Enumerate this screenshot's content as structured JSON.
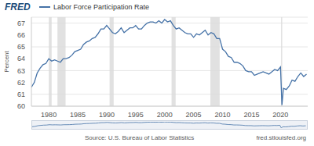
{
  "chart_data": {
    "type": "line",
    "ylabel": "Percent",
    "annotations": {
      "logo": "FRED",
      "source": "Source: U.S. Bureau of Labor Statistics",
      "url": "fred.stlouisfed.org"
    },
    "legend": "top left",
    "grid": true,
    "x": [
      1977.0,
      1977.5,
      1978.0,
      1978.5,
      1979.0,
      1979.5,
      1980.0,
      1980.5,
      1981.0,
      1981.5,
      1982.0,
      1982.5,
      1983.0,
      1983.5,
      1984.0,
      1984.5,
      1985.0,
      1985.5,
      1986.0,
      1986.5,
      1987.0,
      1987.5,
      1988.0,
      1988.5,
      1989.0,
      1989.5,
      1990.0,
      1990.5,
      1991.0,
      1991.5,
      1992.0,
      1992.5,
      1993.0,
      1993.5,
      1994.0,
      1994.5,
      1995.0,
      1995.5,
      1996.0,
      1996.5,
      1997.0,
      1997.5,
      1998.0,
      1998.5,
      1999.0,
      1999.5,
      2000.0,
      2000.5,
      2001.0,
      2001.5,
      2002.0,
      2002.5,
      2003.0,
      2003.5,
      2004.0,
      2004.5,
      2005.0,
      2005.5,
      2006.0,
      2006.5,
      2007.0,
      2007.5,
      2008.0,
      2008.5,
      2009.0,
      2009.5,
      2010.0,
      2010.5,
      2011.0,
      2011.5,
      2012.0,
      2012.5,
      2013.0,
      2013.5,
      2014.0,
      2014.5,
      2015.0,
      2015.5,
      2016.0,
      2016.5,
      2017.0,
      2017.5,
      2018.0,
      2018.5,
      2019.0,
      2019.5,
      2020.0,
      2020.25,
      2020.5,
      2021.0,
      2021.5,
      2022.0,
      2022.5,
      2023.0,
      2023.5,
      2024.0,
      2024.5
    ],
    "series": [
      {
        "name": "Labor Force Participation Rate",
        "color": "#4572a7",
        "values": [
          61.6,
          62.0,
          62.8,
          63.2,
          63.5,
          63.6,
          64.0,
          63.8,
          63.9,
          63.8,
          63.7,
          64.0,
          64.0,
          64.1,
          64.3,
          64.6,
          64.7,
          64.8,
          65.2,
          65.4,
          65.5,
          65.7,
          65.8,
          66.1,
          66.5,
          66.5,
          66.8,
          66.5,
          66.2,
          66.1,
          66.3,
          66.6,
          66.2,
          66.4,
          66.6,
          66.6,
          66.8,
          66.5,
          66.5,
          66.8,
          67.0,
          67.1,
          67.1,
          67.0,
          67.2,
          67.0,
          67.3,
          67.1,
          67.2,
          66.8,
          66.5,
          66.6,
          66.4,
          66.2,
          66.1,
          66.1,
          65.8,
          66.1,
          66.0,
          66.2,
          66.4,
          66.0,
          66.2,
          66.1,
          65.7,
          65.7,
          64.8,
          64.6,
          64.2,
          64.1,
          63.7,
          63.7,
          63.6,
          63.4,
          63.0,
          62.9,
          62.9,
          62.6,
          62.7,
          62.8,
          62.9,
          62.8,
          62.7,
          62.9,
          63.1,
          63.0,
          63.3,
          60.1,
          61.5,
          61.4,
          61.7,
          62.2,
          62.1,
          62.5,
          62.8,
          62.5,
          62.7
        ]
      }
    ],
    "recessions": [
      [
        1980.0,
        1980.5
      ],
      [
        1981.5,
        1982.9
      ],
      [
        1990.5,
        1991.2
      ],
      [
        2001.2,
        2001.9
      ],
      [
        2007.9,
        2009.5
      ],
      [
        2020.1,
        2020.3
      ]
    ],
    "xlim": [
      1977,
      2024.7
    ],
    "xticks": [
      1980,
      1985,
      1990,
      1995,
      2000,
      2005,
      2010,
      2015,
      2020
    ],
    "ylim": [
      60,
      67.5
    ],
    "yticks": [
      60,
      61,
      62,
      63,
      64,
      65,
      66,
      67
    ]
  }
}
